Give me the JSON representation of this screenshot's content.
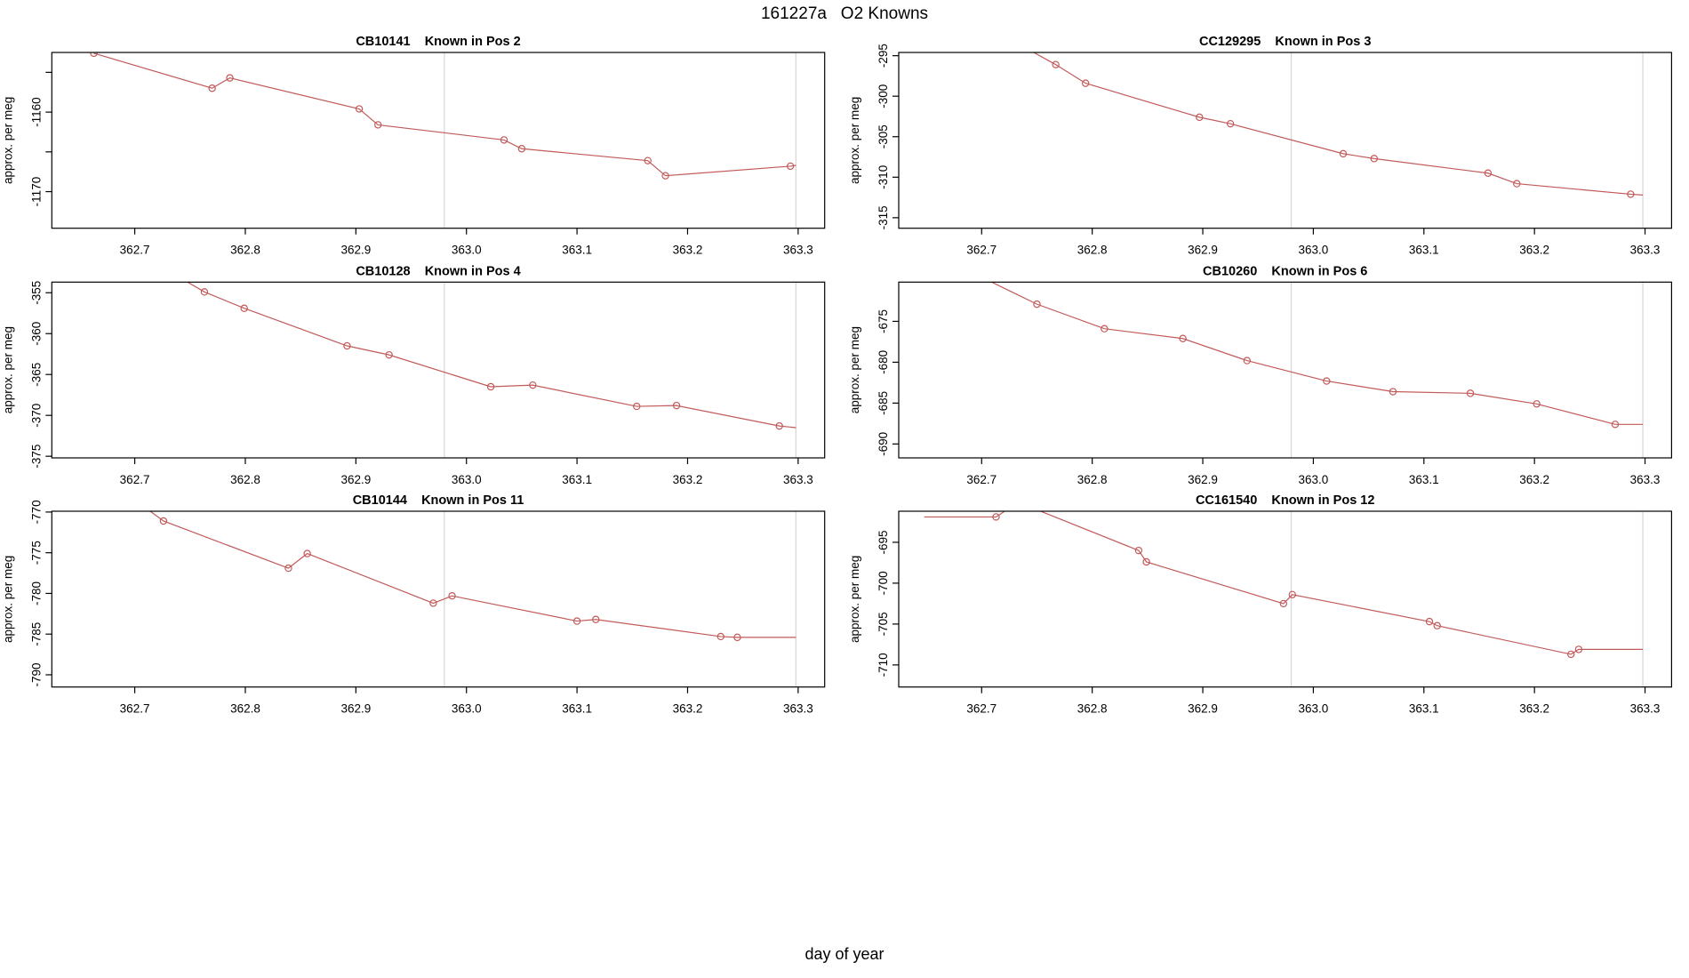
{
  "page": {
    "title": "161227a   O2 Knowns",
    "xlabel": "day of year"
  },
  "colors": {
    "line": "#c25a5a",
    "marker": "#c25a5a",
    "vline": "#d8d8d8",
    "axis": "#000000",
    "background": "#ffffff"
  },
  "chart_data": {
    "type": "line",
    "title": "161227a   O2 Knowns",
    "xlabel": "day of year",
    "ylabel": "approx. per meg",
    "legend": "none",
    "grid": "off",
    "xlim": [
      362.625,
      363.324
    ],
    "xticks": [
      362.7,
      362.8,
      362.9,
      363.0,
      363.1,
      363.2,
      363.3
    ],
    "xtick_labels": [
      "362.7",
      "362.8",
      "362.9",
      "363.0",
      "363.1",
      "363.2",
      "363.3"
    ],
    "vlines": [
      362.98,
      363.298
    ],
    "panels": [
      {
        "sample": "CB10141",
        "position": "Pos 2",
        "title": "CB10141    Known in Pos 2",
        "ylabel": "approx. per meg",
        "ylim": [
          -1174.6,
          -1152.5
        ],
        "yticks": [
          {
            "v": -1155,
            "label": ""
          },
          {
            "v": -1160,
            "label": "-1160"
          },
          {
            "v": -1165,
            "label": ""
          },
          {
            "v": -1170,
            "label": "-1170"
          }
        ],
        "points": [
          {
            "x": 362.663,
            "y": -1152.6,
            "marker": true
          },
          {
            "x": 362.77,
            "y": -1157.0,
            "marker": true
          },
          {
            "x": 362.786,
            "y": -1155.7,
            "marker": true
          },
          {
            "x": 362.903,
            "y": -1159.6,
            "marker": true
          },
          {
            "x": 362.92,
            "y": -1161.6,
            "marker": true
          },
          {
            "x": 363.034,
            "y": -1163.5,
            "marker": true
          },
          {
            "x": 363.05,
            "y": -1164.6,
            "marker": true
          },
          {
            "x": 363.164,
            "y": -1166.1,
            "marker": true
          },
          {
            "x": 363.18,
            "y": -1168.0,
            "marker": true
          },
          {
            "x": 363.293,
            "y": -1166.8,
            "marker": true
          },
          {
            "x": 363.298,
            "y": -1166.7,
            "marker": false
          }
        ]
      },
      {
        "sample": "CC129295",
        "position": "Pos 3",
        "title": "CC129295    Known in Pos 3",
        "ylabel": "approx. per meg",
        "ylim": [
          -316.3,
          -294.6
        ],
        "yticks": [
          {
            "v": -295,
            "label": "-295"
          },
          {
            "v": -300,
            "label": "-300"
          },
          {
            "v": -305,
            "label": "-305"
          },
          {
            "v": -310,
            "label": "-310"
          },
          {
            "v": -315,
            "label": "-315"
          }
        ],
        "points": [
          {
            "x": 362.73,
            "y": -293.3,
            "marker": false
          },
          {
            "x": 362.767,
            "y": -296.1,
            "marker": true
          },
          {
            "x": 362.794,
            "y": -298.4,
            "marker": true
          },
          {
            "x": 362.897,
            "y": -302.6,
            "marker": true
          },
          {
            "x": 362.925,
            "y": -303.4,
            "marker": true
          },
          {
            "x": 363.027,
            "y": -307.1,
            "marker": true
          },
          {
            "x": 363.055,
            "y": -307.7,
            "marker": true
          },
          {
            "x": 363.158,
            "y": -309.5,
            "marker": true
          },
          {
            "x": 363.184,
            "y": -310.8,
            "marker": true
          },
          {
            "x": 363.287,
            "y": -312.1,
            "marker": true
          },
          {
            "x": 363.298,
            "y": -312.2,
            "marker": false
          }
        ]
      },
      {
        "sample": "CB10128",
        "position": "Pos 4",
        "title": "CB10128    Known in Pos 4",
        "ylabel": "approx. per meg",
        "ylim": [
          -375.2,
          -353.7
        ],
        "yticks": [
          {
            "v": -355,
            "label": "-355"
          },
          {
            "v": -360,
            "label": "-360"
          },
          {
            "v": -365,
            "label": "-365"
          },
          {
            "v": -370,
            "label": "-370"
          },
          {
            "v": -375,
            "label": "-375"
          }
        ],
        "points": [
          {
            "x": 362.73,
            "y": -352.3,
            "marker": false
          },
          {
            "x": 362.763,
            "y": -354.9,
            "marker": true
          },
          {
            "x": 362.799,
            "y": -356.9,
            "marker": true
          },
          {
            "x": 362.892,
            "y": -361.5,
            "marker": true
          },
          {
            "x": 362.93,
            "y": -362.6,
            "marker": true
          },
          {
            "x": 363.022,
            "y": -366.5,
            "marker": true
          },
          {
            "x": 363.06,
            "y": -366.3,
            "marker": true
          },
          {
            "x": 363.154,
            "y": -368.9,
            "marker": true
          },
          {
            "x": 363.19,
            "y": -368.8,
            "marker": true
          },
          {
            "x": 363.283,
            "y": -371.3,
            "marker": true
          },
          {
            "x": 363.298,
            "y": -371.5,
            "marker": false
          }
        ]
      },
      {
        "sample": "CB10260",
        "position": "Pos 6",
        "title": "CB10260    Known in Pos 6",
        "ylabel": "approx. per meg",
        "ylim": [
          -691.7,
          -670.2
        ],
        "yticks": [
          {
            "v": -675,
            "label": "-675"
          },
          {
            "v": -680,
            "label": "-680"
          },
          {
            "v": -685,
            "label": "-685"
          },
          {
            "v": -690,
            "label": "-690"
          }
        ],
        "points": [
          {
            "x": 362.7,
            "y": -669.6,
            "marker": false
          },
          {
            "x": 362.75,
            "y": -672.9,
            "marker": true
          },
          {
            "x": 362.811,
            "y": -675.9,
            "marker": true
          },
          {
            "x": 362.882,
            "y": -677.1,
            "marker": true
          },
          {
            "x": 362.94,
            "y": -679.8,
            "marker": true
          },
          {
            "x": 363.012,
            "y": -682.3,
            "marker": true
          },
          {
            "x": 363.072,
            "y": -683.6,
            "marker": true
          },
          {
            "x": 363.142,
            "y": -683.8,
            "marker": true
          },
          {
            "x": 363.202,
            "y": -685.1,
            "marker": true
          },
          {
            "x": 363.273,
            "y": -687.6,
            "marker": true
          },
          {
            "x": 363.298,
            "y": -687.6,
            "marker": false
          }
        ]
      },
      {
        "sample": "CB10144",
        "position": "Pos 11",
        "title": "CB10144    Known in Pos 11",
        "ylabel": "approx. per meg",
        "ylim": [
          -791.5,
          -769.9
        ],
        "yticks": [
          {
            "v": -770,
            "label": "-770"
          },
          {
            "v": -775,
            "label": "-775"
          },
          {
            "v": -780,
            "label": "-780"
          },
          {
            "v": -785,
            "label": "-785"
          },
          {
            "v": -790,
            "label": "-790"
          }
        ],
        "points": [
          {
            "x": 362.708,
            "y": -769.3,
            "marker": false
          },
          {
            "x": 362.726,
            "y": -771.1,
            "marker": true
          },
          {
            "x": 362.839,
            "y": -776.9,
            "marker": true
          },
          {
            "x": 362.856,
            "y": -775.1,
            "marker": true
          },
          {
            "x": 362.97,
            "y": -781.2,
            "marker": true
          },
          {
            "x": 362.987,
            "y": -780.3,
            "marker": true
          },
          {
            "x": 363.1,
            "y": -783.4,
            "marker": true
          },
          {
            "x": 363.117,
            "y": -783.2,
            "marker": true
          },
          {
            "x": 363.23,
            "y": -785.3,
            "marker": true
          },
          {
            "x": 363.245,
            "y": -785.4,
            "marker": true
          },
          {
            "x": 363.298,
            "y": -785.4,
            "marker": false
          }
        ]
      },
      {
        "sample": "CC161540",
        "position": "Pos 12",
        "title": "CC161540    Known in Pos 12",
        "ylabel": "approx. per meg",
        "ylim": [
          -712.7,
          -691.2
        ],
        "yticks": [
          {
            "v": -695,
            "label": "-695"
          },
          {
            "v": -700,
            "label": "-700"
          },
          {
            "v": -705,
            "label": "-705"
          },
          {
            "v": -710,
            "label": "-710"
          }
        ],
        "points": [
          {
            "x": 362.648,
            "y": -691.9,
            "marker": false
          },
          {
            "x": 362.713,
            "y": -691.9,
            "marker": true
          },
          {
            "x": 362.733,
            "y": -690.1,
            "marker": false
          },
          {
            "x": 362.842,
            "y": -696.0,
            "marker": true
          },
          {
            "x": 362.849,
            "y": -697.4,
            "marker": true
          },
          {
            "x": 362.973,
            "y": -702.5,
            "marker": true
          },
          {
            "x": 362.981,
            "y": -701.4,
            "marker": true
          },
          {
            "x": 363.105,
            "y": -704.7,
            "marker": true
          },
          {
            "x": 363.112,
            "y": -705.2,
            "marker": true
          },
          {
            "x": 363.233,
            "y": -708.7,
            "marker": true
          },
          {
            "x": 363.24,
            "y": -708.1,
            "marker": true
          },
          {
            "x": 363.298,
            "y": -708.1,
            "marker": false
          }
        ]
      }
    ]
  }
}
